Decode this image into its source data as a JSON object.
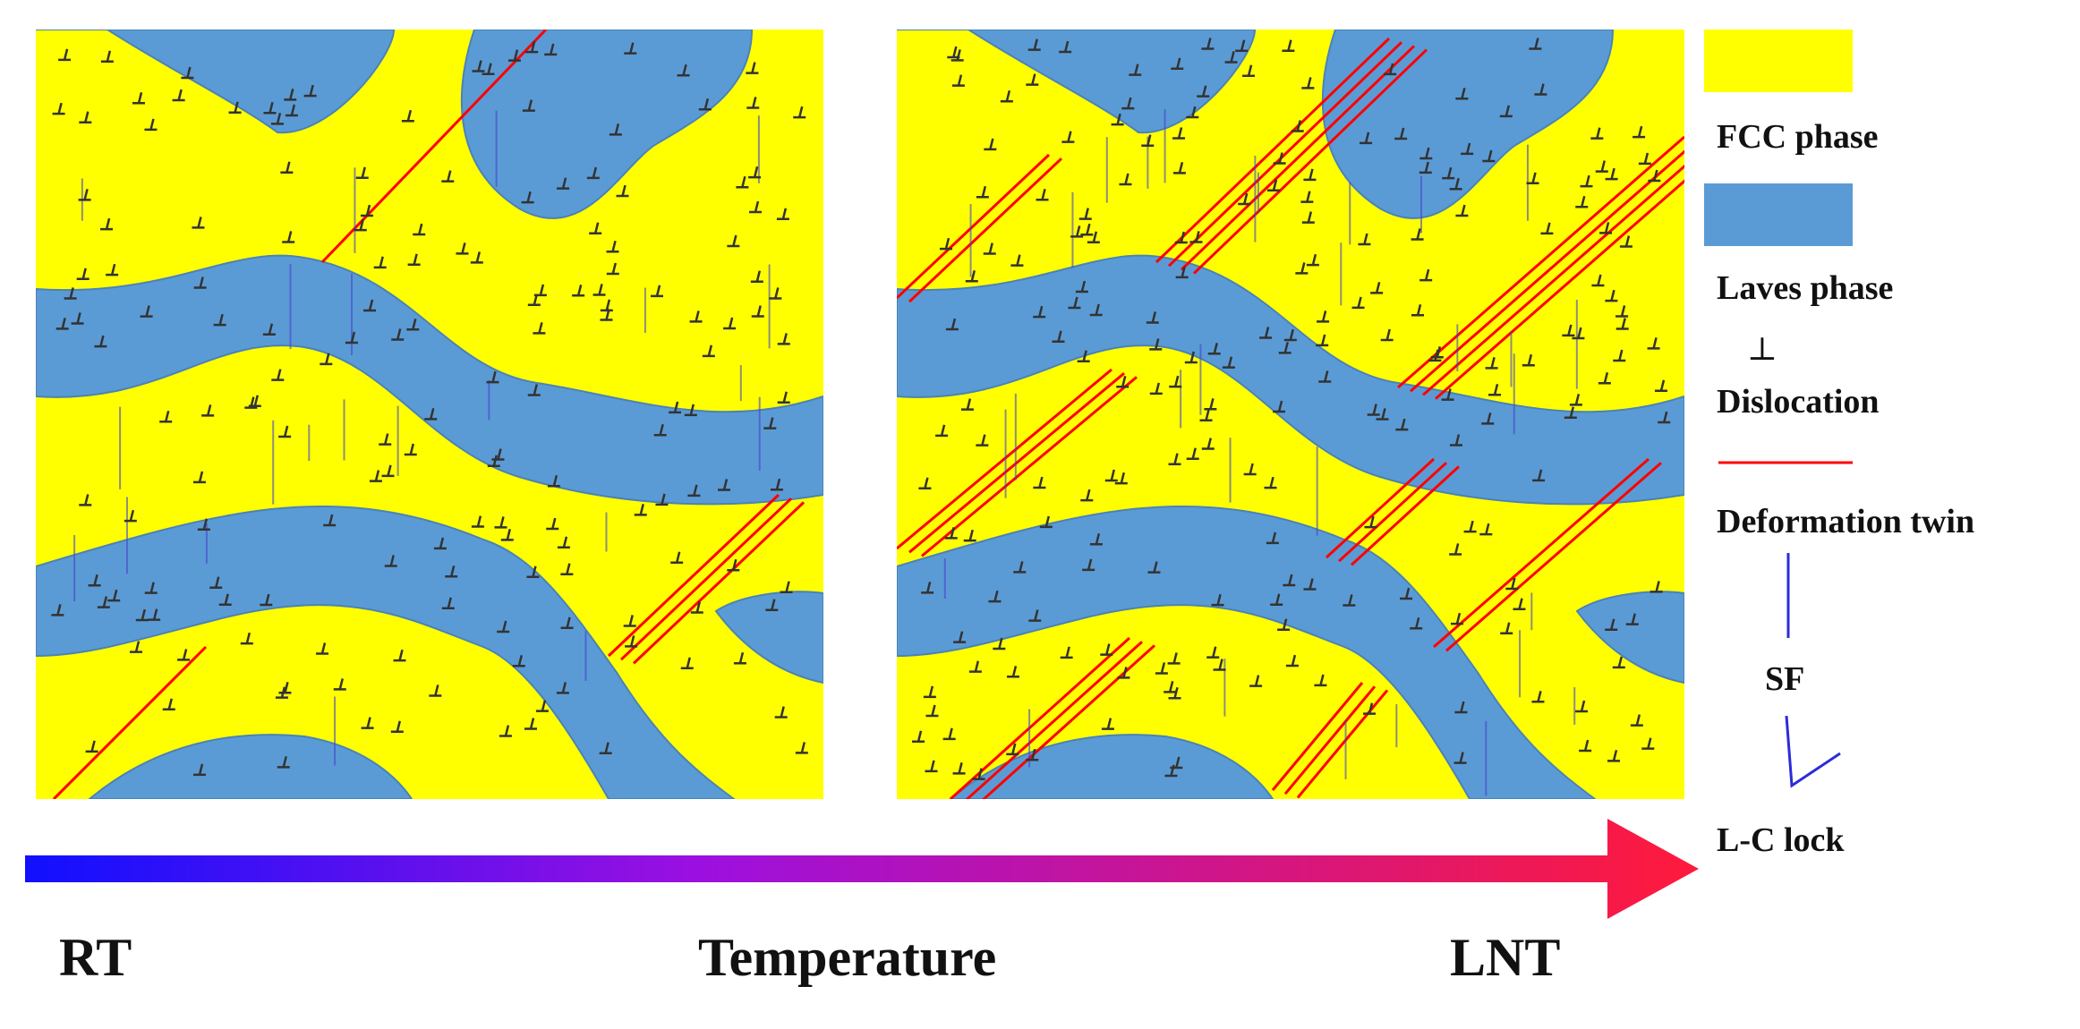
{
  "colors": {
    "fcc_phase": "#ffff00",
    "laves_phase": "#5b9bd5",
    "dislocation": "#333333",
    "deformation_twin": "#ff0000",
    "stacking_fault": "#2b2bd9",
    "arrow_start": "#1010ff",
    "arrow_mid": "#9b10e0",
    "arrow_end": "#ff1a3a"
  },
  "legend": {
    "fcc": {
      "label": "FCC phase"
    },
    "laves": {
      "label": "Laves phase"
    },
    "dislocation": {
      "label": "Dislocation",
      "symbol": "⊥"
    },
    "twin": {
      "label": "Deformation twin"
    },
    "sf": {
      "label": "SF"
    },
    "lc_lock": {
      "label": "L-C lock"
    }
  },
  "axis": {
    "start_label": "RT",
    "title": "Temperature",
    "end_label": "LNT"
  },
  "panels": [
    {
      "id": "room-temperature",
      "twin_bundles": 3
    },
    {
      "id": "liquid-nitrogen-temperature",
      "twin_bundles": 8
    }
  ]
}
